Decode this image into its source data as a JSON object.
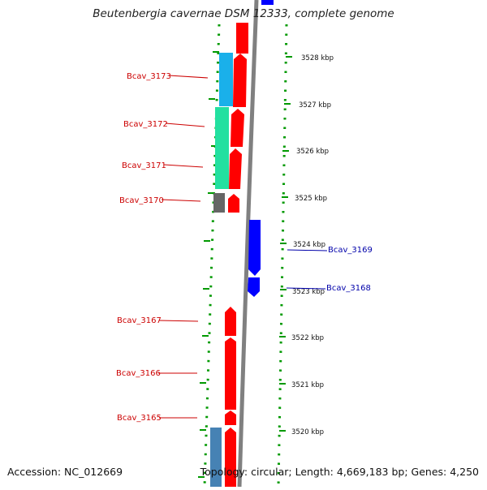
{
  "title": "Beutenbergia cavernae DSM 12333, complete genome",
  "footer": {
    "accession": "Accession: NC_012669",
    "summary": "Topology: circular; Length: 4,669,183 bp; Genes: 4,250"
  },
  "colors": {
    "forward": "#ff0000",
    "reverse": "#0000ff",
    "backbone": "#808080",
    "tick": "#009900",
    "label_left": "#cc0000",
    "label_right": "#0000aa",
    "cog_cyan": "#1ab0ea",
    "cog_green": "#22e0a0",
    "cog_grey": "#666666",
    "cog_steel": "#4682b4"
  },
  "scale_labels": [
    "3528 kbp",
    "3527 kbp",
    "3526 kbp",
    "3525 kbp",
    "3524 kbp",
    "3523 kbp",
    "3522 kbp",
    "3521 kbp",
    "3520 kbp"
  ],
  "genes_left": [
    {
      "label": "Bcav_3173"
    },
    {
      "label": "Bcav_3172"
    },
    {
      "label": "Bcav_3171"
    },
    {
      "label": "Bcav_3170"
    },
    {
      "label": "Bcav_3167"
    },
    {
      "label": "Bcav_3166"
    },
    {
      "label": "Bcav_3165"
    }
  ],
  "genes_right": [
    {
      "label": "Bcav_3169"
    },
    {
      "label": "Bcav_3168"
    }
  ]
}
